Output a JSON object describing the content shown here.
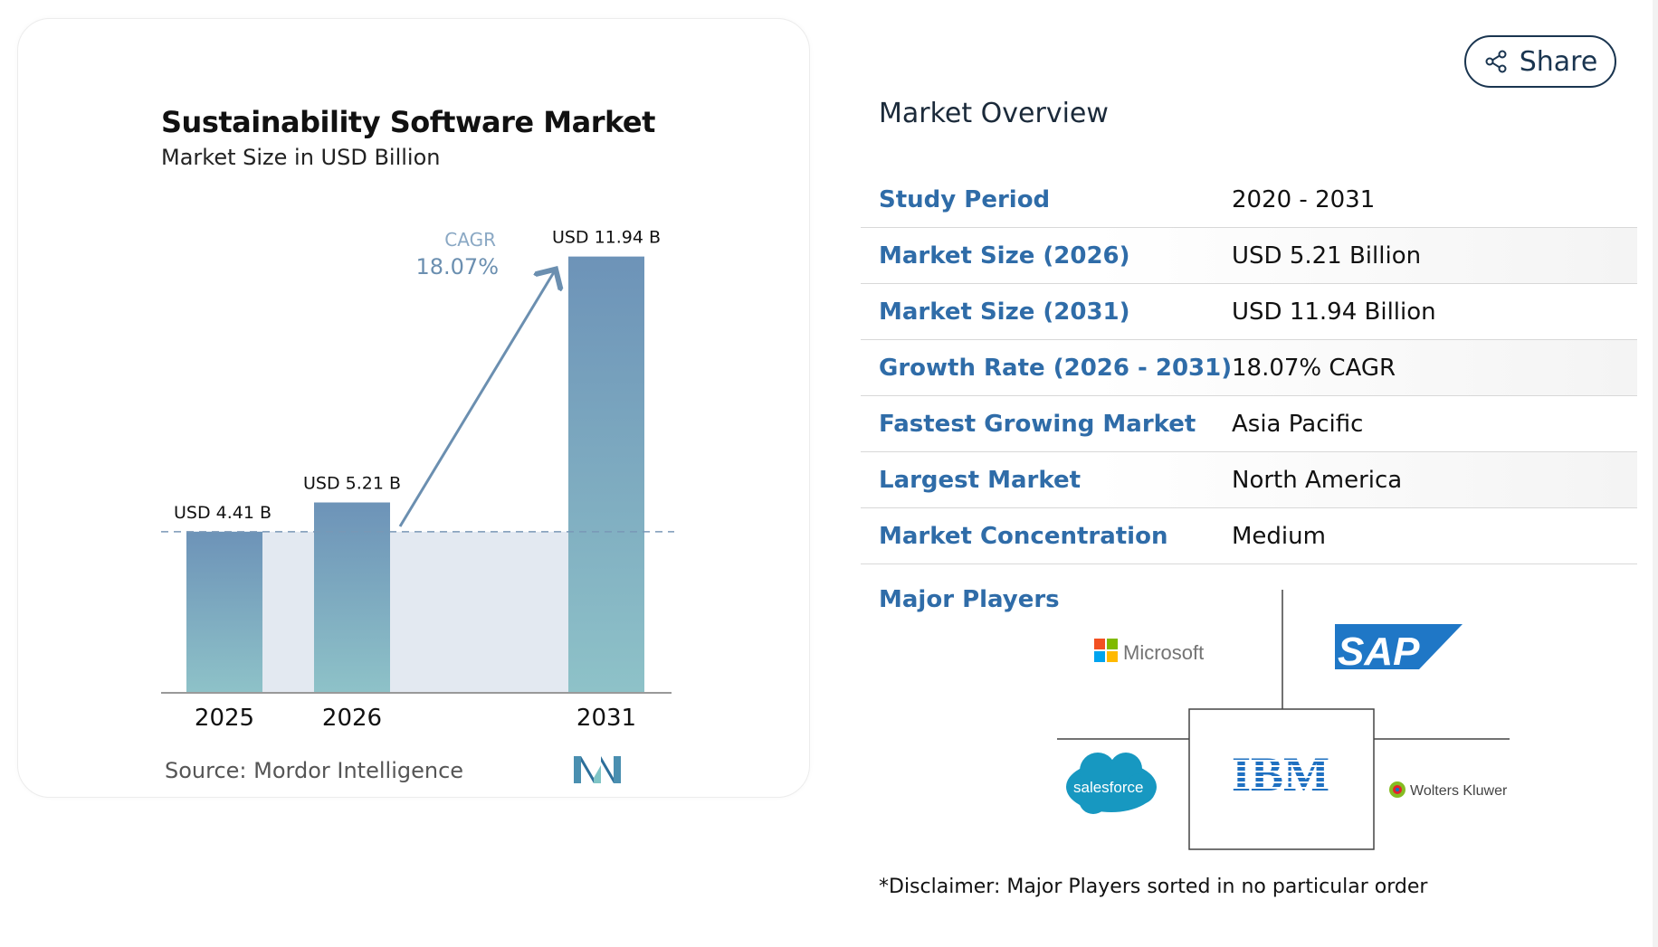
{
  "chart": {
    "title": "Sustainability Software Market",
    "subtitle": "Market Size in USD Billion",
    "source": "Source: Mordor Intelligence",
    "cagr_label": "CAGR",
    "cagr_value": "18.07%"
  },
  "chart_data": {
    "type": "bar",
    "categories": [
      "2025",
      "2026",
      "2031"
    ],
    "values": [
      4.41,
      5.21,
      11.94
    ],
    "data_labels": [
      "USD 4.41 B",
      "USD 5.21 B",
      "USD 11.94 B"
    ],
    "title": "Sustainability Software Market",
    "subtitle": "Market Size in USD Billion",
    "annotation": "CAGR 18.07%",
    "grid": false,
    "colors": {
      "bar_top": "#6d93b8",
      "bar_bottom": "#8ec2c8",
      "shade": "#e3e9f1",
      "arrow": "#6b8fb0"
    }
  },
  "share": {
    "label": "Share",
    "icon": "share-icon"
  },
  "overview": {
    "title": "Market Overview",
    "rows": [
      {
        "label": "Study Period",
        "value": "2020 - 2031"
      },
      {
        "label": "Market Size (2026)",
        "value": "USD 5.21 Billion"
      },
      {
        "label": "Market Size (2031)",
        "value": "USD 11.94 Billion"
      },
      {
        "label": "Growth Rate (2026 - 2031)",
        "value": "18.07% CAGR"
      },
      {
        "label": "Fastest Growing Market",
        "value": "Asia Pacific"
      },
      {
        "label": "Largest Market",
        "value": "North America"
      },
      {
        "label": "Market Concentration",
        "value": "Medium"
      }
    ]
  },
  "players": {
    "label": "Major Players",
    "logos": [
      "Microsoft",
      "SAP",
      "salesforce",
      "IBM",
      "Wolters Kluwer"
    ]
  },
  "disclaimer": "*Disclaimer: Major Players sorted in no particular order",
  "colors": {
    "label_blue": "#2f6ca8",
    "dark_navy": "#1a3550"
  }
}
